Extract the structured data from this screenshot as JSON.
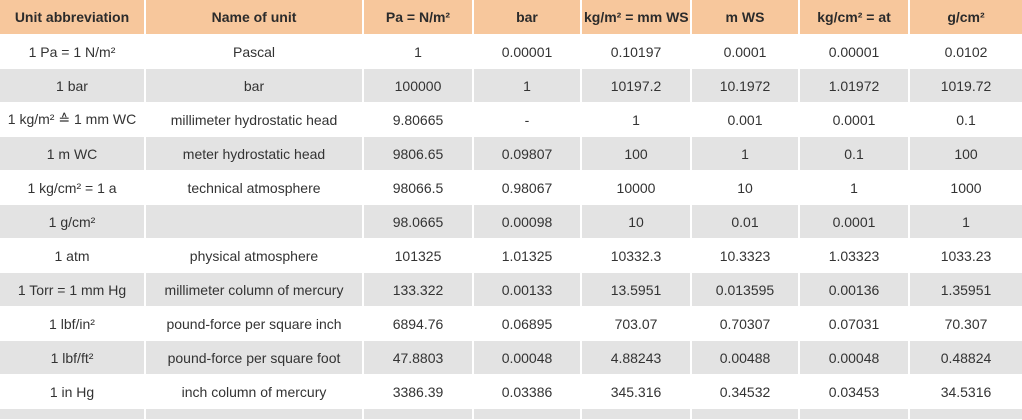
{
  "table": {
    "headers": [
      "Unit abbreviation",
      "Name of unit",
      "Pa = N/m²",
      "bar",
      "kg/m² = mm WS",
      "m WS",
      "kg/cm² = at",
      "g/cm²"
    ],
    "rows": [
      [
        "1 Pa = 1 N/m²",
        "Pascal",
        "1",
        "0.00001",
        "0.10197",
        "0.0001",
        "0.00001",
        "0.0102"
      ],
      [
        "1 bar",
        "bar",
        "100000",
        "1",
        "10197.2",
        "10.1972",
        "1.01972",
        "1019.72"
      ],
      [
        "1 kg/m² ≙ 1 mm WC",
        "millimeter hydrostatic head",
        "9.80665",
        "-",
        "1",
        "0.001",
        "0.0001",
        "0.1"
      ],
      [
        "1 m WC",
        "meter hydrostatic head",
        "9806.65",
        "0.09807",
        "100",
        "1",
        "0.1",
        "100"
      ],
      [
        "1 kg/cm² = 1 a",
        "technical atmosphere",
        "98066.5",
        "0.98067",
        "10000",
        "10",
        "1",
        "1000"
      ],
      [
        "1 g/cm²",
        "",
        "98.0665",
        "0.00098",
        "10",
        "0.01",
        "0.0001",
        "1"
      ],
      [
        "1 atm",
        "physical atmosphere",
        "101325",
        "1.01325",
        "10332.3",
        "10.3323",
        "1.03323",
        "1033.23"
      ],
      [
        "1 Torr = 1 mm Hg",
        "millimeter column of mercury",
        "133.322",
        "0.00133",
        "13.5951",
        "0.013595",
        "0.00136",
        "1.35951"
      ],
      [
        "1 lbf/in²",
        "pound-force per square inch",
        "6894.76",
        "0.06895",
        "703.07",
        "0.70307",
        "0.07031",
        "70.307"
      ],
      [
        "1 lbf/ft²",
        "pound-force per square foot",
        "47.8803",
        "0.00048",
        "4.88243",
        "0.00488",
        "0.00048",
        "0.48824"
      ],
      [
        "1 in Hg",
        "inch column of mercury",
        "3386.39",
        "0.03386",
        "345.316",
        "0.34532",
        "0.03453",
        "34.5316"
      ],
      [
        "",
        "",
        "",
        "",
        "",
        "",
        "",
        ""
      ]
    ]
  }
}
